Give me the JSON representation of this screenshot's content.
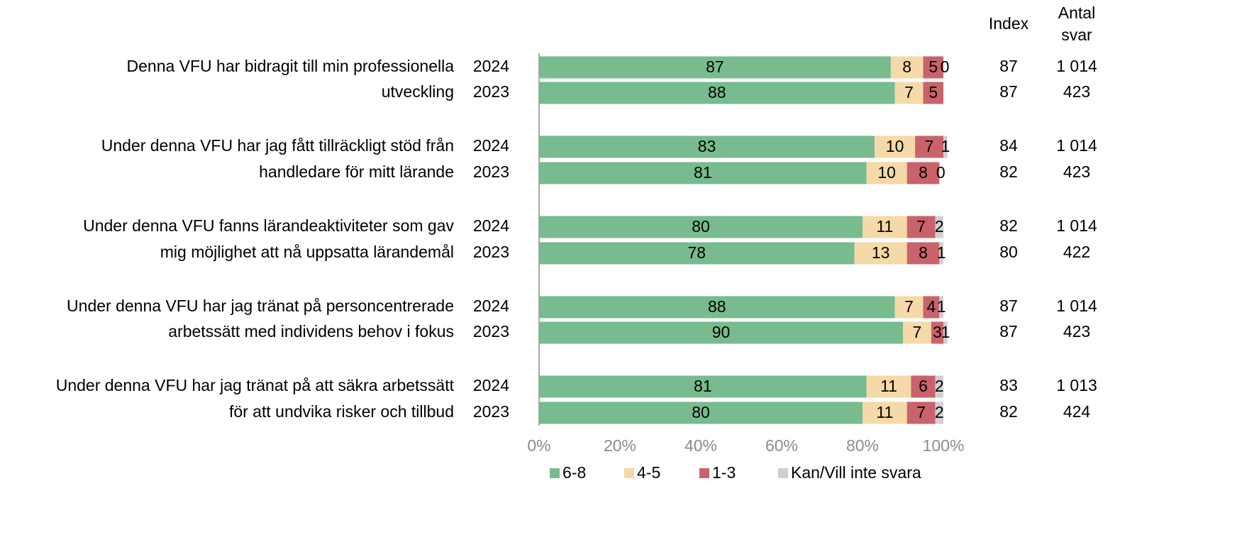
{
  "chart_data": {
    "type": "bar",
    "orientation": "horizontal",
    "stacked": true,
    "row_labels": [
      "Denna VFU har bidragit till min professionella",
      "utveckling",
      "Under denna VFU har jag fått tillräckligt stöd från",
      "handledare för mitt lärande",
      "Under denna VFU fanns lärandeaktiviteter som gav",
      "mig möjlighet att nå uppsatta lärandemål",
      "Under denna VFU har jag tränat på personcentrerade",
      "arbetssätt med individens behov i fokus",
      "Under denna VFU har jag tränat på att säkra arbetssätt",
      "för att undvika risker och tillbud"
    ],
    "categories": [
      "2024",
      "2023",
      "2024",
      "2023",
      "2024",
      "2023",
      "2024",
      "2023",
      "2024",
      "2023"
    ],
    "series": [
      {
        "name": "6-8",
        "color": "#77bb8f",
        "values": [
          87,
          88,
          83,
          81,
          80,
          78,
          88,
          90,
          81,
          80
        ]
      },
      {
        "name": "4-5",
        "color": "#f5d9a8",
        "values": [
          8,
          7,
          10,
          10,
          11,
          13,
          7,
          7,
          11,
          11
        ]
      },
      {
        "name": "1-3",
        "color": "#c9626a",
        "values": [
          5,
          5,
          7,
          8,
          7,
          8,
          4,
          3,
          6,
          7
        ]
      },
      {
        "name": "Kan/Vill inte svara",
        "color": "#d0d0d0",
        "values": [
          0,
          null,
          1,
          0,
          2,
          1,
          1,
          1,
          2,
          2
        ]
      }
    ],
    "index_header": "Index",
    "index": [
      87,
      87,
      84,
      82,
      82,
      80,
      87,
      87,
      83,
      82
    ],
    "count_header": [
      "Antal",
      "svar"
    ],
    "count": [
      1014,
      423,
      1014,
      423,
      1014,
      422,
      1014,
      423,
      1013,
      424
    ],
    "count_labels": [
      "1 014",
      "423",
      "1 014",
      "423",
      "1 014",
      "422",
      "1 014",
      "423",
      "1 013",
      "424"
    ],
    "xlim": [
      0,
      100
    ],
    "xticks": [
      {
        "value": 0,
        "label": "0%"
      },
      {
        "value": 20,
        "label": "20%"
      },
      {
        "value": 40,
        "label": "40%"
      },
      {
        "value": 60,
        "label": "60%"
      },
      {
        "value": 80,
        "label": "80%"
      },
      {
        "value": 100,
        "label": "100%"
      }
    ],
    "legend": "bottom"
  }
}
